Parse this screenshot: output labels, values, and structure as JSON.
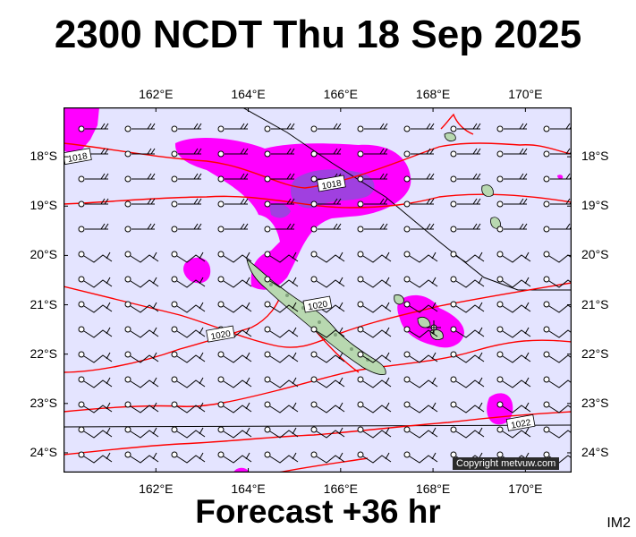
{
  "header": {
    "title": "2300 NCDT Thu 18 Sep 2025"
  },
  "footer": {
    "forecast": "Forecast +36 hr",
    "image_code": "IM2"
  },
  "copyright": "Copyright metvuw.com",
  "axes": {
    "longitude_labels": [
      "162°E",
      "164°E",
      "166°E",
      "168°E",
      "170°E"
    ],
    "longitudes": [
      162,
      164,
      166,
      168,
      170
    ],
    "latitude_labels": [
      "18°S",
      "19°S",
      "20°S",
      "21°S",
      "22°S",
      "23°S",
      "24°S"
    ],
    "latitudes": [
      -18,
      -19,
      -20,
      -21,
      -22,
      -23,
      -24
    ],
    "lon_range": [
      160.0,
      171.0
    ],
    "lat_range": [
      -17.0,
      -24.4
    ]
  },
  "isobars": {
    "color": "#ff0000",
    "labels": [
      {
        "text": "1018",
        "lon": 160.3,
        "lat": -18.0
      },
      {
        "text": "1018",
        "lon": 165.8,
        "lat": -18.55
      },
      {
        "text": "1020",
        "lon": 165.5,
        "lat": -21.0
      },
      {
        "text": "1020",
        "lon": 163.4,
        "lat": -21.6
      },
      {
        "text": "1022",
        "lon": 169.9,
        "lat": -23.4
      }
    ]
  },
  "rain": {
    "light_color": "#ff00ff",
    "heavy_color": "#a040e0"
  },
  "background_color": "#e4e4ff"
}
